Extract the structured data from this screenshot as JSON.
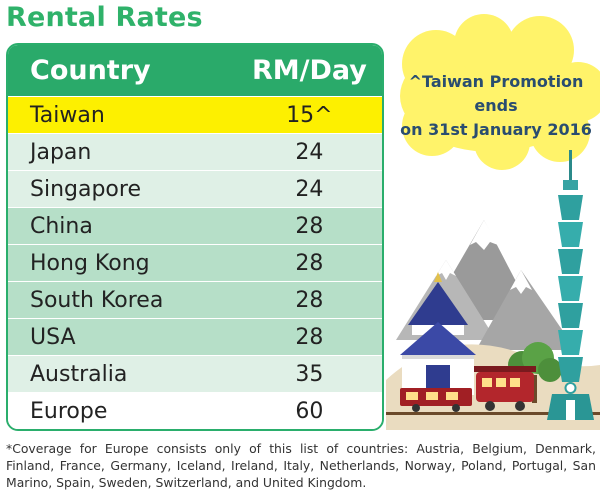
{
  "title": "Rental Rates",
  "table": {
    "headers": {
      "country": "Country",
      "rate": "RM/Day"
    },
    "rows": [
      {
        "country": "Taiwan",
        "rate": "15^"
      },
      {
        "country": "Japan",
        "rate": "24"
      },
      {
        "country": "Singapore",
        "rate": "24"
      },
      {
        "country": "China",
        "rate": "28"
      },
      {
        "country": "Hong Kong",
        "rate": "28"
      },
      {
        "country": "South Korea",
        "rate": "28"
      },
      {
        "country": "USA",
        "rate": "28"
      },
      {
        "country": "Australia",
        "rate": "35"
      },
      {
        "country": "Europe",
        "rate": "60"
      }
    ]
  },
  "promo": {
    "line1": "^Taiwan Promotion ends",
    "line2": "on 31st January 2016"
  },
  "footnote": "*Coverage for Europe consists only of this list of countries: Austria, Belgium, Denmark, Finland, France, Germany, Iceland, Ireland, Italy, Netherlands, Norway, Poland, Portugal, San Marino, Spain, Sweden, Switzerland, and United Kingdom.",
  "colors": {
    "brand_green": "#2aaa6a",
    "highlight_yellow": "#fdf000",
    "cloud_yellow": "#fff36a",
    "promo_text": "#2a4d70"
  },
  "illustration": {
    "icons": [
      "taipei-101-tower-icon",
      "mountains-icon",
      "memorial-hall-icon",
      "red-train-icon",
      "tree-icon"
    ]
  }
}
